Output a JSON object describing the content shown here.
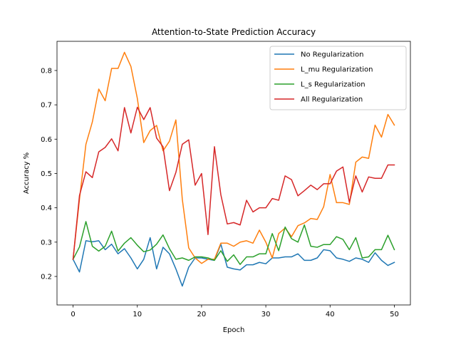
{
  "chart_data": {
    "type": "line",
    "title": "Attention-to-State Prediction Accuracy",
    "xlabel": "Epoch",
    "ylabel": "Accuracy %",
    "xlim": [
      -2.5,
      52.5
    ],
    "ylim": [
      0.117,
      0.885
    ],
    "xticks": [
      0,
      10,
      20,
      30,
      40,
      50
    ],
    "yticks": [
      0.2,
      0.3,
      0.4,
      0.5,
      0.6,
      0.7,
      0.8
    ],
    "grid": false,
    "legend_position": "upper right",
    "x": [
      0,
      1,
      2,
      3,
      4,
      5,
      6,
      7,
      8,
      9,
      10,
      11,
      12,
      13,
      14,
      15,
      16,
      17,
      18,
      19,
      20,
      21,
      22,
      23,
      24,
      25,
      26,
      27,
      28,
      29,
      30,
      31,
      32,
      33,
      34,
      35,
      36,
      37,
      38,
      39,
      40,
      41,
      42,
      43,
      44,
      45,
      46,
      47,
      48,
      49,
      50
    ],
    "series": [
      {
        "name": "No Regularization",
        "color": "#1f77b4",
        "values": [
          0.25,
          0.213,
          0.304,
          0.301,
          0.304,
          0.278,
          0.294,
          0.266,
          0.281,
          0.254,
          0.222,
          0.25,
          0.313,
          0.222,
          0.285,
          0.266,
          0.222,
          0.172,
          0.227,
          0.254,
          0.254,
          0.25,
          0.247,
          0.294,
          0.227,
          0.222,
          0.219,
          0.234,
          0.234,
          0.241,
          0.237,
          0.254,
          0.254,
          0.257,
          0.257,
          0.266,
          0.247,
          0.247,
          0.254,
          0.278,
          0.275,
          0.254,
          0.25,
          0.244,
          0.254,
          0.25,
          0.241,
          0.269,
          0.247,
          0.232,
          0.241
        ]
      },
      {
        "name": "L_mu Regularization",
        "color": "#ff7f0e",
        "values": [
          0.25,
          0.425,
          0.585,
          0.65,
          0.746,
          0.712,
          0.806,
          0.806,
          0.853,
          0.812,
          0.719,
          0.59,
          0.625,
          0.64,
          0.566,
          0.594,
          0.656,
          0.425,
          0.283,
          0.254,
          0.238,
          0.25,
          0.25,
          0.297,
          0.297,
          0.288,
          0.3,
          0.304,
          0.297,
          0.335,
          0.3,
          0.254,
          0.325,
          0.341,
          0.316,
          0.348,
          0.356,
          0.369,
          0.366,
          0.403,
          0.497,
          0.415,
          0.415,
          0.41,
          0.533,
          0.548,
          0.544,
          0.641,
          0.606,
          0.672,
          0.641
        ]
      },
      {
        "name": "L_s Regularization",
        "color": "#2ca02c",
        "values": [
          0.25,
          0.286,
          0.36,
          0.288,
          0.274,
          0.288,
          0.332,
          0.274,
          0.297,
          0.313,
          0.291,
          0.272,
          0.277,
          0.294,
          0.321,
          0.281,
          0.25,
          0.254,
          0.247,
          0.257,
          0.257,
          0.254,
          0.247,
          0.275,
          0.244,
          0.263,
          0.235,
          0.257,
          0.257,
          0.266,
          0.266,
          0.325,
          0.275,
          0.344,
          0.31,
          0.3,
          0.35,
          0.288,
          0.285,
          0.293,
          0.293,
          0.316,
          0.308,
          0.278,
          0.313,
          0.254,
          0.257,
          0.278,
          0.278,
          0.32,
          0.278
        ]
      },
      {
        "name": "All Regularization",
        "color": "#d62728",
        "values": [
          0.25,
          0.436,
          0.505,
          0.488,
          0.563,
          0.576,
          0.601,
          0.566,
          0.692,
          0.618,
          0.693,
          0.657,
          0.692,
          0.603,
          0.578,
          0.45,
          0.503,
          0.585,
          0.598,
          0.466,
          0.5,
          0.322,
          0.578,
          0.438,
          0.353,
          0.357,
          0.35,
          0.422,
          0.388,
          0.4,
          0.4,
          0.427,
          0.422,
          0.493,
          0.482,
          0.435,
          0.45,
          0.466,
          0.453,
          0.47,
          0.47,
          0.507,
          0.519,
          0.416,
          0.493,
          0.446,
          0.49,
          0.486,
          0.486,
          0.525,
          0.525
        ]
      }
    ]
  }
}
